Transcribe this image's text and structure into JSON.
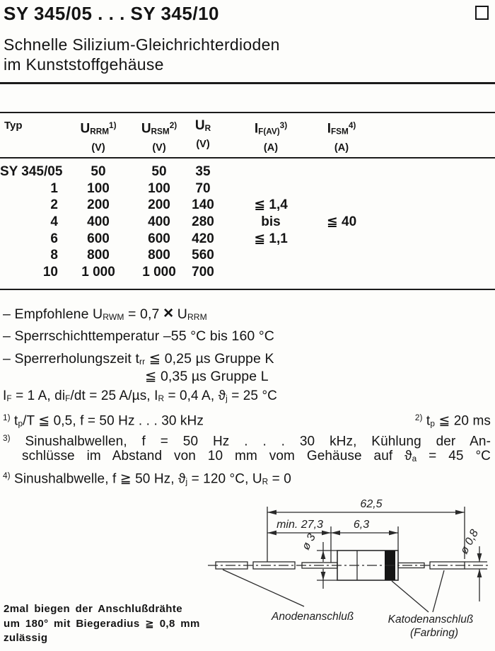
{
  "colors": {
    "ink": "#141414",
    "paper": "#fdfdfb"
  },
  "header": {
    "title": "SY 345/05 . . . SY 345/10",
    "subtitle_line1": "Schnelle Silizium-Gleichrichterdioden",
    "subtitle_line2": "im Kunststoffgehäuse"
  },
  "table": {
    "columns": [
      {
        "runs": [
          {
            "t": "Typ"
          }
        ],
        "unit": ""
      },
      {
        "runs": [
          {
            "t": "U"
          },
          {
            "t": "RRM",
            "s": "sub"
          },
          {
            "t": "1)",
            "s": "sup"
          }
        ],
        "unit": "(V)"
      },
      {
        "runs": [
          {
            "t": "U"
          },
          {
            "t": "RSM",
            "s": "sub"
          },
          {
            "t": "2)",
            "s": "sup"
          }
        ],
        "unit": "(V)"
      },
      {
        "runs": [
          {
            "t": "U"
          },
          {
            "t": "R",
            "s": "sub"
          }
        ],
        "unit": "(V)"
      },
      {
        "runs": [
          {
            "t": "I"
          },
          {
            "t": "F(AV)",
            "s": "sub"
          },
          {
            "t": "3)",
            "s": "sup"
          }
        ],
        "unit": "(A)"
      },
      {
        "runs": [
          {
            "t": "I"
          },
          {
            "t": "FSM",
            "s": "sub"
          },
          {
            "t": "4)",
            "s": "sup"
          }
        ],
        "unit": "(A)"
      }
    ],
    "rows": [
      {
        "typ": "SY 345/05",
        "urrm": "50",
        "ursm": "50",
        "ur": "35",
        "ifav": "",
        "ifsm": ""
      },
      {
        "typ": "1",
        "urrm": "100",
        "ursm": "100",
        "ur": "70",
        "ifav": "",
        "ifsm": ""
      },
      {
        "typ": "2",
        "urrm": "200",
        "ursm": "200",
        "ur": "140",
        "ifav": "≦ 1,4",
        "ifsm": ""
      },
      {
        "typ": "4",
        "urrm": "400",
        "ursm": "400",
        "ur": "280",
        "ifav": "bis",
        "ifsm": "≦ 40"
      },
      {
        "typ": "6",
        "urrm": "600",
        "ursm": "600",
        "ur": "420",
        "ifav": "≦ 1,1",
        "ifsm": ""
      },
      {
        "typ": "8",
        "urrm": "800",
        "ursm": "800",
        "ur": "560",
        "ifav": "",
        "ifsm": ""
      },
      {
        "typ": "10",
        "urrm": "1 000",
        "ursm": "1 000",
        "ur": "700",
        "ifav": "",
        "ifsm": ""
      }
    ]
  },
  "notes": {
    "empfohlene": [
      {
        "t": "– Empfohlene U"
      },
      {
        "t": "RWM",
        "s": "sub"
      },
      {
        "t": " = 0,7 "
      },
      {
        "t": "×",
        "s": "x"
      },
      {
        "t": " U"
      },
      {
        "t": "RRM",
        "s": "sub"
      }
    ],
    "sperrschicht": [
      {
        "t": "– Sperrschichttemperatur –55 °C bis 160 °C"
      }
    ],
    "sperrerholung": [
      {
        "t": "– Sperrerholungszeit t"
      },
      {
        "t": "rr",
        "s": "sub"
      },
      {
        "t": " ≦ 0,25 µs Gruppe K"
      }
    ],
    "gruppe_l": [
      {
        "t": "≦ 0,35 µs Gruppe L"
      }
    ],
    "bedingungen": [
      {
        "t": "I"
      },
      {
        "t": "F",
        "s": "sub"
      },
      {
        "t": " = 1 A, di"
      },
      {
        "t": "F",
        "s": "sub"
      },
      {
        "t": "/dt = 25 A/µs, I"
      },
      {
        "t": "R",
        "s": "sub"
      },
      {
        "t": " = 0,4 A, ϑ"
      },
      {
        "t": "j",
        "s": "sub"
      },
      {
        "t": " = 25 °C"
      }
    ],
    "fn1": [
      {
        "t": "1)",
        "s": "sup"
      },
      {
        "t": " t"
      },
      {
        "t": "p",
        "s": "sub"
      },
      {
        "t": "/T ≦ 0,5, f = 50 Hz . . . 30 kHz"
      }
    ],
    "fn2": [
      {
        "t": "2)",
        "s": "sup"
      },
      {
        "t": " t"
      },
      {
        "t": "p",
        "s": "sub"
      },
      {
        "t": " ≦ 20 ms"
      }
    ],
    "fn3a": [
      {
        "t": "3)",
        "s": "sup"
      },
      {
        "t": " Sinushalbwellen, f = 50 Hz . . . 30 kHz, Kühlung der An-"
      }
    ],
    "fn3b": [
      {
        "t": "schlüsse im Abstand von 10 mm vom Gehäuse auf ϑ"
      },
      {
        "t": "a",
        "s": "sub"
      },
      {
        "t": " = 45 °C"
      }
    ],
    "fn4": [
      {
        "t": "4)",
        "s": "sup"
      },
      {
        "t": " Sinushalbwelle, f ≧ 50 Hz, ϑ"
      },
      {
        "t": "j",
        "s": "sub"
      },
      {
        "t": " = 120 °C, U"
      },
      {
        "t": "R",
        "s": "sub"
      },
      {
        "t": " = 0"
      }
    ]
  },
  "bend_note": {
    "line1": "2mal biegen der Anschlußdrähte",
    "line2": "um 180° mit Biegeradius ≧ 0,8 mm",
    "line3": "zulässig"
  },
  "diagram": {
    "dim_overall": "62,5",
    "dim_lead_min": "min. 27,3",
    "dim_body_len": "6,3",
    "dim_body_dia": "ø 3",
    "dim_lead_dia": "ø 0,8",
    "label_anode": "Anodenanschluß",
    "label_cathode": "Katodenanschluß",
    "label_cathode_note": "(Farbring)"
  }
}
